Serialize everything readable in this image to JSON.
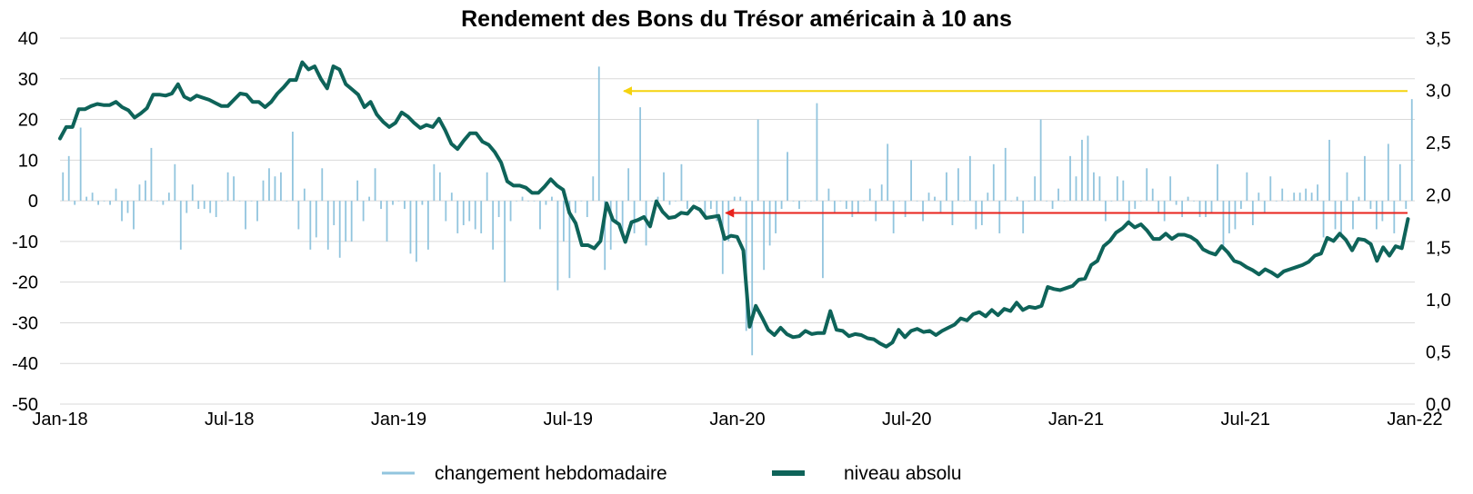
{
  "chart_data": {
    "type": "bar+line",
    "title": "Rendement des Bons du Trésor américain à 10 ans",
    "x_tick_labels": [
      "Jan-18",
      "Jul-18",
      "Jan-19",
      "Jul-19",
      "Jan-20",
      "Jul-20",
      "Jan-21",
      "Jul-21",
      "Jan-22"
    ],
    "x_range": [
      "2018-01-01",
      "2022-01-01"
    ],
    "y_left": {
      "ticks": [
        40,
        30,
        20,
        10,
        0,
        -10,
        -20,
        -30,
        -40,
        -50
      ],
      "range": [
        -50,
        40
      ]
    },
    "y_right": {
      "ticks": [
        "3,5",
        "3,0",
        "2,5",
        "2,0",
        "1,5",
        "1,0",
        "0,5",
        "0,0"
      ],
      "range": [
        0,
        3.5
      ]
    },
    "grid": "horizontal",
    "legend_position": "bottom",
    "colors": {
      "bars": "#92c5de",
      "line": "#0e6359",
      "yellow_arrow": "#f5d30f",
      "red_arrow": "#e8231c",
      "grid": "#d9d9d9"
    },
    "series": [
      {
        "name": "changement hebdomadaire",
        "kind": "bar",
        "axis": "left",
        "values": [
          7,
          11,
          -1,
          18,
          1,
          2,
          -1,
          0,
          -1,
          3,
          -5,
          -3,
          -7,
          4,
          5,
          13,
          0,
          -1,
          2,
          9,
          -12,
          -3,
          4,
          -2,
          -2,
          -3,
          -4,
          0,
          7,
          6,
          0,
          -7,
          0,
          -5,
          5,
          8,
          6,
          7,
          0,
          17,
          -7,
          3,
          -12,
          -9,
          8,
          -12,
          -6,
          -14,
          -10,
          -10,
          5,
          -5,
          1,
          8,
          -2,
          -10,
          -1,
          0,
          -2,
          -13,
          -15,
          -1,
          -12,
          9,
          7,
          -5,
          2,
          -8,
          -6,
          -5,
          -7,
          -8,
          7,
          -12,
          -4,
          -20,
          -5,
          0,
          1,
          0,
          0,
          -7,
          -1,
          1,
          -22,
          -10,
          -19,
          -3,
          0,
          -4,
          6,
          33,
          -17,
          -12,
          -5,
          -9,
          8,
          -8,
          23,
          -11,
          0,
          1,
          7,
          -1,
          0,
          9,
          -2,
          0,
          0,
          -4,
          -2,
          -5,
          -18,
          -10,
          1,
          1,
          -32,
          -38,
          20,
          -17,
          -11,
          -8,
          -2,
          12,
          0,
          -2,
          0,
          0,
          24,
          -19,
          3,
          -3,
          0,
          -2,
          -4,
          -3,
          0,
          3,
          -5,
          4,
          14,
          -8,
          0,
          -4,
          10,
          0,
          -5,
          2,
          1,
          -3,
          7,
          -6,
          8,
          0,
          11,
          -7,
          -6,
          2,
          9,
          -8,
          13,
          0,
          1,
          -8,
          0,
          6,
          20,
          0,
          -2,
          3,
          0,
          11,
          6,
          15,
          16,
          7,
          6,
          -5,
          0,
          6,
          5,
          -6,
          -2,
          0,
          8,
          3,
          -3,
          -5,
          6,
          -1,
          -4,
          1,
          0,
          -4,
          -4,
          -3,
          9,
          -11,
          -8,
          -7,
          -2,
          7,
          -6,
          2,
          -3,
          6,
          0,
          3,
          0,
          2,
          2,
          3,
          2,
          4,
          -9,
          15,
          -7,
          -9,
          7,
          -7,
          1,
          11,
          -2,
          -7,
          -5,
          14,
          -8,
          9,
          -2,
          25
        ]
      },
      {
        "name": "niveau absolu",
        "kind": "line",
        "axis": "right",
        "values": [
          2.54,
          2.65,
          2.65,
          2.82,
          2.82,
          2.85,
          2.87,
          2.86,
          2.86,
          2.89,
          2.84,
          2.81,
          2.74,
          2.78,
          2.83,
          2.96,
          2.96,
          2.95,
          2.97,
          3.06,
          2.94,
          2.91,
          2.95,
          2.93,
          2.91,
          2.88,
          2.85,
          2.85,
          2.91,
          2.97,
          2.96,
          2.89,
          2.89,
          2.84,
          2.89,
          2.97,
          3.03,
          3.1,
          3.1,
          3.27,
          3.2,
          3.23,
          3.11,
          3.02,
          3.23,
          3.2,
          3.06,
          3.01,
          2.96,
          2.84,
          2.89,
          2.77,
          2.7,
          2.65,
          2.69,
          2.79,
          2.75,
          2.69,
          2.64,
          2.67,
          2.65,
          2.73,
          2.62,
          2.49,
          2.44,
          2.52,
          2.59,
          2.59,
          2.51,
          2.48,
          2.41,
          2.31,
          2.13,
          2.09,
          2.09,
          2.07,
          2.02,
          2.02,
          2.08,
          2.15,
          2.09,
          2.05,
          1.83,
          1.73,
          1.52,
          1.52,
          1.49,
          1.56,
          1.92,
          1.76,
          1.72,
          1.55,
          1.74,
          1.76,
          1.79,
          1.7,
          1.94,
          1.84,
          1.78,
          1.79,
          1.83,
          1.82,
          1.89,
          1.86,
          1.78,
          1.79,
          1.8,
          1.58,
          1.61,
          1.6,
          1.47,
          0.74,
          0.94,
          0.83,
          0.71,
          0.66,
          0.73,
          0.67,
          0.64,
          0.65,
          0.7,
          0.67,
          0.68,
          0.68,
          0.89,
          0.71,
          0.7,
          0.65,
          0.67,
          0.66,
          0.63,
          0.62,
          0.58,
          0.55,
          0.59,
          0.71,
          0.64,
          0.7,
          0.72,
          0.69,
          0.7,
          0.66,
          0.7,
          0.73,
          0.76,
          0.82,
          0.8,
          0.86,
          0.88,
          0.84,
          0.9,
          0.85,
          0.91,
          0.89,
          0.97,
          0.9,
          0.93,
          0.92,
          0.94,
          1.12,
          1.1,
          1.09,
          1.11,
          1.13,
          1.19,
          1.2,
          1.33,
          1.37,
          1.51,
          1.56,
          1.64,
          1.68,
          1.74,
          1.69,
          1.72,
          1.66,
          1.58,
          1.58,
          1.63,
          1.58,
          1.62,
          1.62,
          1.6,
          1.56,
          1.48,
          1.45,
          1.43,
          1.51,
          1.45,
          1.37,
          1.35,
          1.31,
          1.28,
          1.24,
          1.29,
          1.26,
          1.22,
          1.27,
          1.29,
          1.31,
          1.33,
          1.36,
          1.42,
          1.44,
          1.59,
          1.56,
          1.63,
          1.57,
          1.47,
          1.58,
          1.57,
          1.53,
          1.37,
          1.5,
          1.42,
          1.51,
          1.49,
          1.77
        ]
      }
    ],
    "annotations": [
      {
        "type": "arrow",
        "color": "yellow",
        "from": {
          "x": "2022-01-01",
          "y_left": 27
        },
        "to": {
          "x": "2019-09-01",
          "y_left": 27
        }
      },
      {
        "type": "arrow",
        "color": "red",
        "from": {
          "x": "2022-01-01",
          "y_left": -3
        },
        "to": {
          "x": "2019-12-20",
          "y_left": -3
        }
      }
    ]
  }
}
